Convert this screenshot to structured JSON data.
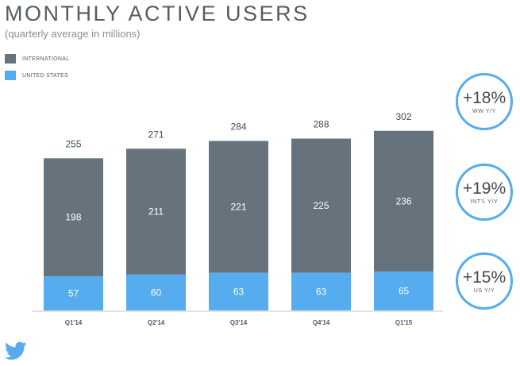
{
  "title": "MONTHLY ACTIVE USERS",
  "subtitle": "(quarterly average in millions)",
  "colors": {
    "international": "#66737d",
    "united_states": "#55acee",
    "axis": "#c6c6c6"
  },
  "legend": [
    {
      "label": "INTERNATIONAL",
      "color": "#66737d"
    },
    {
      "label": "UNITED STATES",
      "color": "#55acee"
    }
  ],
  "chart_data": {
    "type": "bar",
    "stacked": true,
    "categories": [
      "Q1'14",
      "Q2'14",
      "Q3'14",
      "Q4'14",
      "Q1'15"
    ],
    "series": [
      {
        "name": "UNITED STATES",
        "values": [
          57,
          60,
          63,
          63,
          65
        ],
        "color": "#55acee"
      },
      {
        "name": "INTERNATIONAL",
        "values": [
          198,
          211,
          221,
          225,
          236
        ],
        "color": "#66737d"
      }
    ],
    "totals": [
      255,
      271,
      284,
      288,
      302
    ],
    "title": "MONTHLY ACTIVE USERS",
    "subtitle": "(quarterly average in millions)",
    "ylim": [
      0,
      302
    ],
    "grid": false,
    "legend_position": "top-left"
  },
  "badges": [
    {
      "value": "+18%",
      "label": "WW Y/Y"
    },
    {
      "value": "+19%",
      "label": "INT'L Y/Y"
    },
    {
      "value": "+15%",
      "label": "US Y/Y"
    }
  ],
  "logo": "twitter-bird-icon"
}
